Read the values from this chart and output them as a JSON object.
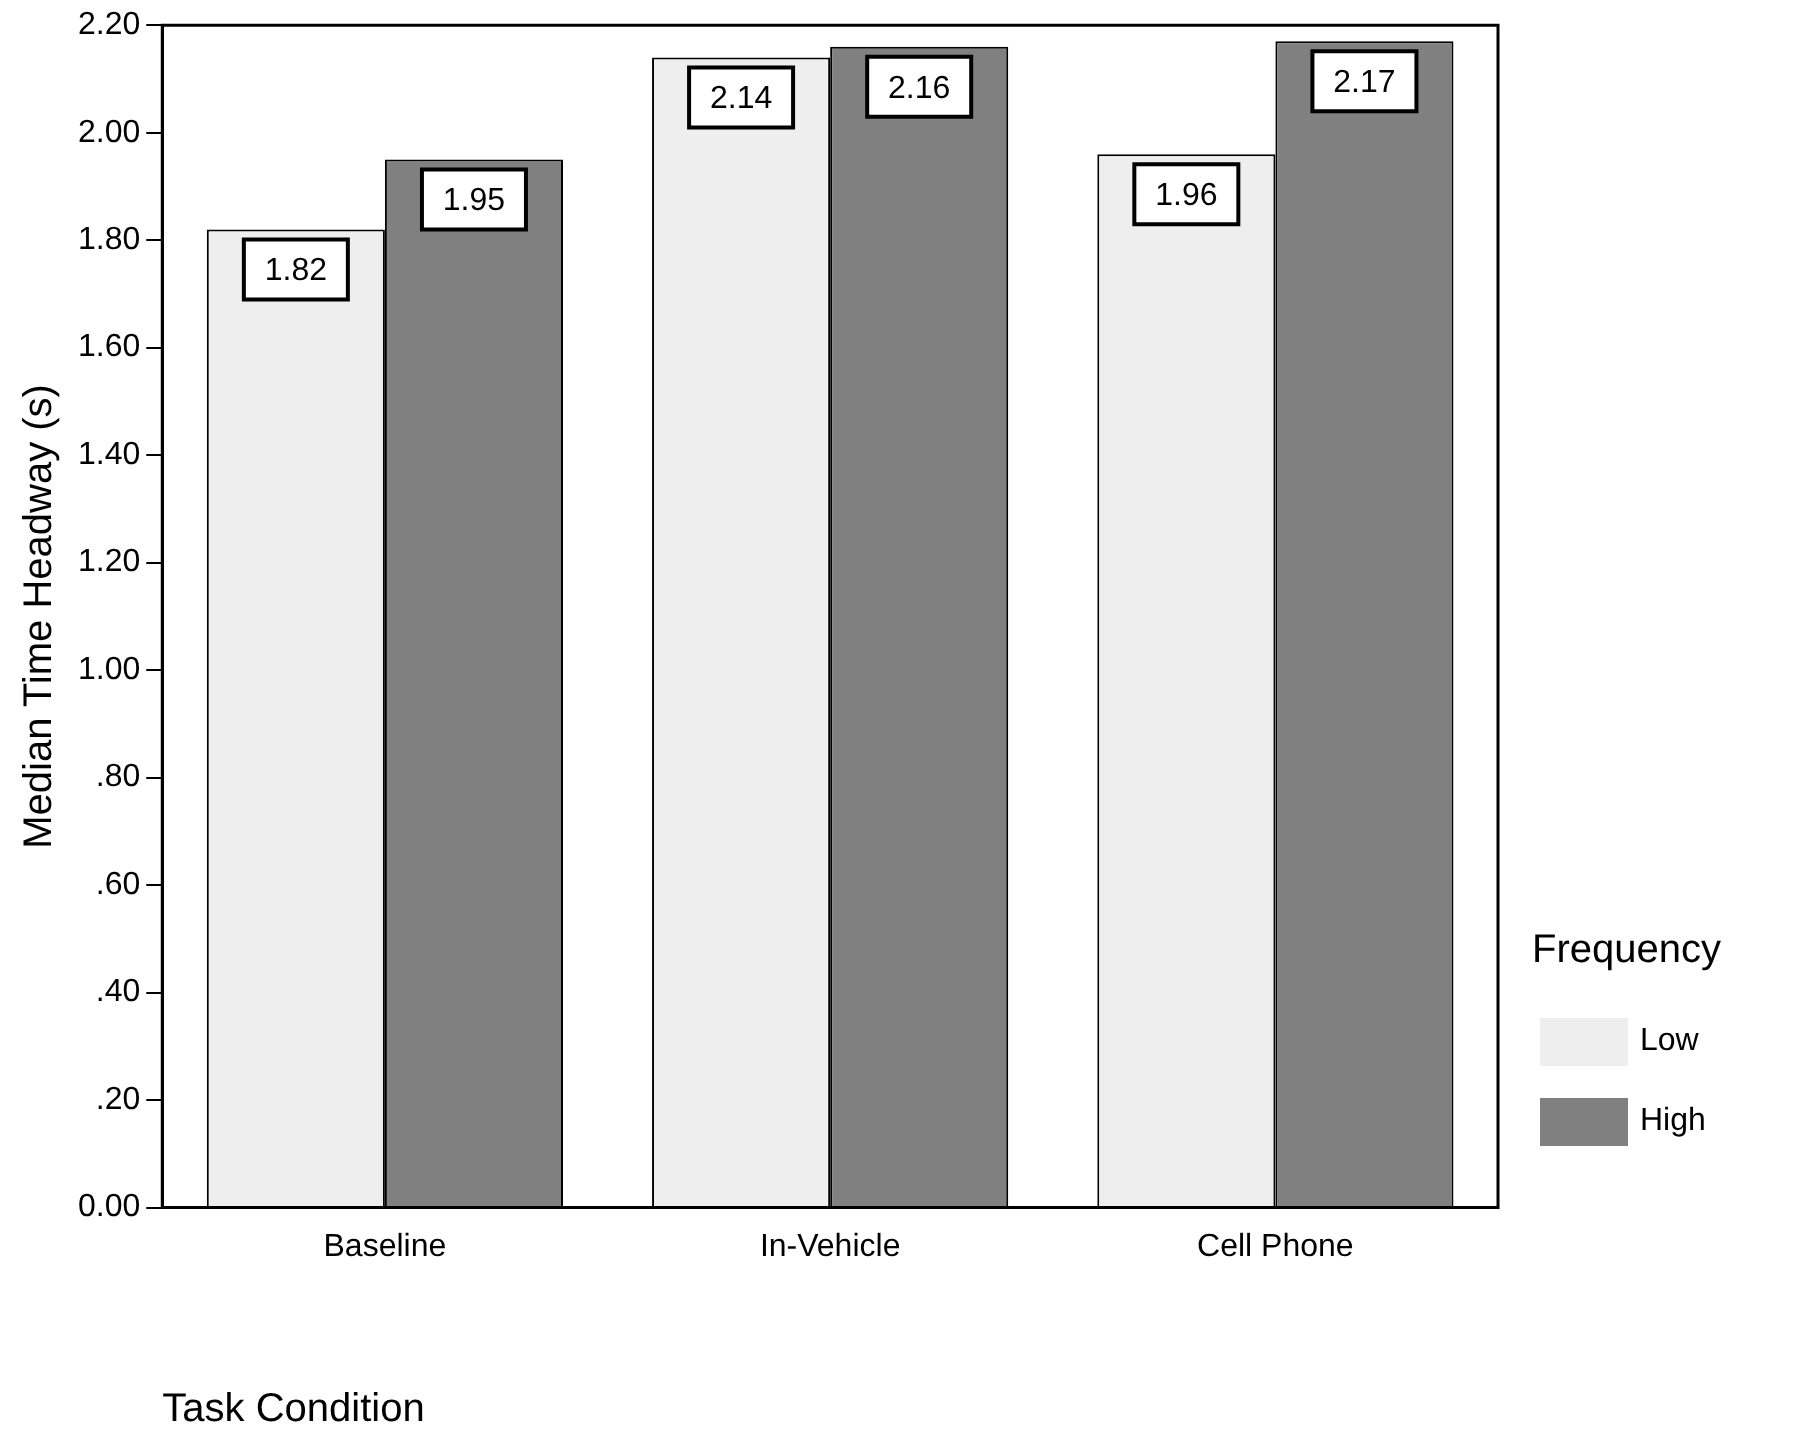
{
  "chart_data": {
    "type": "bar",
    "xlabel": "Task Condition",
    "ylabel": "Median Time Headway (s)",
    "legend_title": "Frequency",
    "categories": [
      "Baseline",
      "In-Vehicle",
      "Cell Phone"
    ],
    "series": [
      {
        "name": "Low",
        "color": "#eeeeee",
        "values": [
          1.82,
          2.14,
          1.96
        ]
      },
      {
        "name": "High",
        "color": "#808080",
        "values": [
          1.95,
          2.16,
          2.17
        ]
      }
    ],
    "ylim": [
      0,
      2.2
    ],
    "yticks": [
      {
        "value": 0,
        "label": "0.00"
      },
      {
        "value": 0.2,
        "label": ".20"
      },
      {
        "value": 0.4,
        "label": ".40"
      },
      {
        "value": 0.6,
        "label": ".60"
      },
      {
        "value": 0.8,
        "label": ".80"
      },
      {
        "value": 1,
        "label": "1.00"
      },
      {
        "value": 1.2,
        "label": "1.20"
      },
      {
        "value": 1.4,
        "label": "1.40"
      },
      {
        "value": 1.6,
        "label": "1.60"
      },
      {
        "value": 1.8,
        "label": "1.80"
      },
      {
        "value": 2,
        "label": "2.00"
      },
      {
        "value": 2.2,
        "label": "2.20"
      }
    ],
    "grid": false,
    "legend": "right",
    "data_labels": true
  }
}
